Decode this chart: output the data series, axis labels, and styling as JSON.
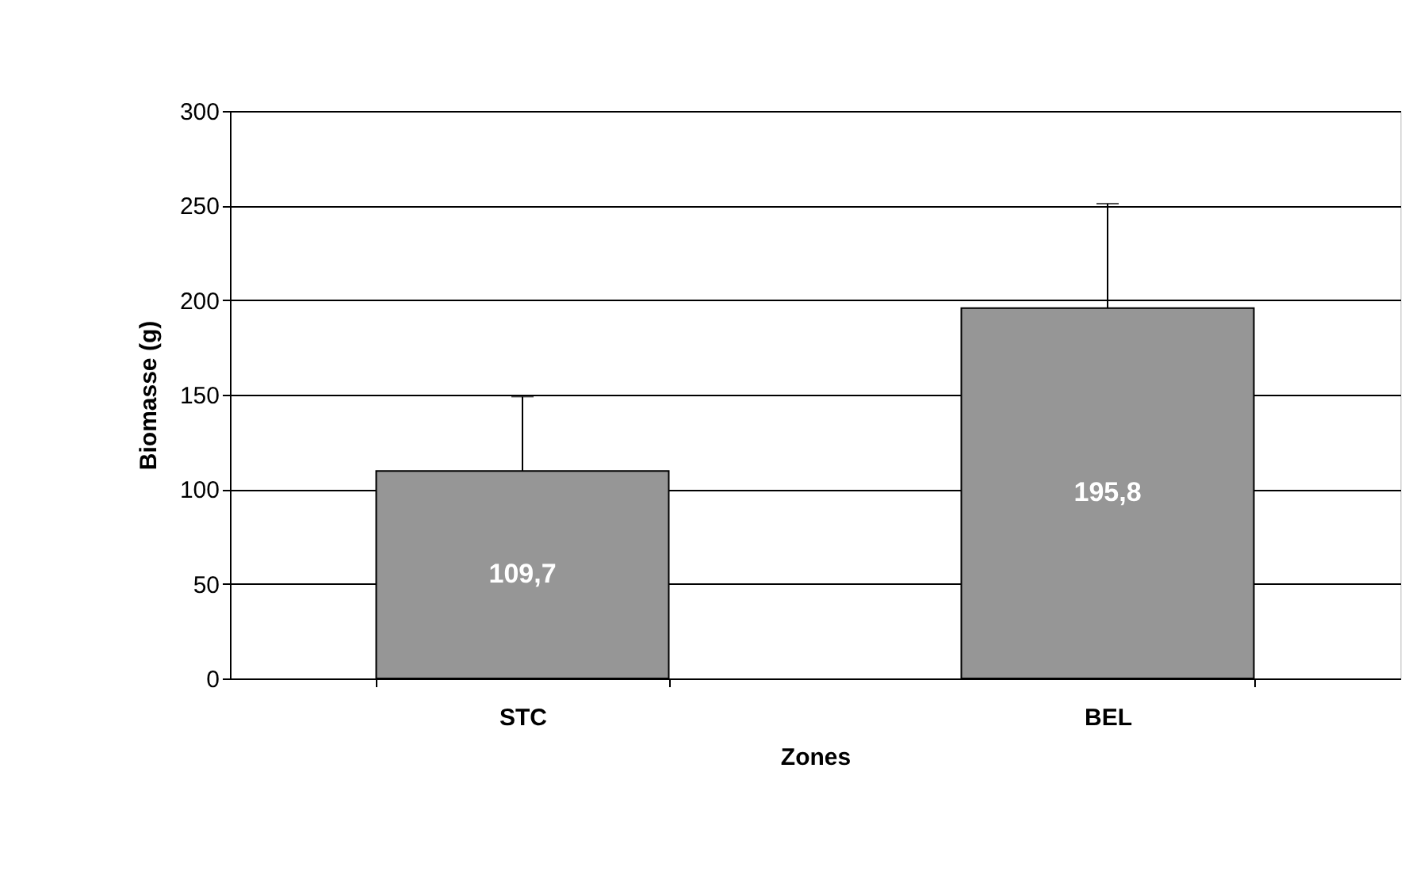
{
  "chart_data": {
    "type": "bar",
    "xlabel": "Zones",
    "ylabel": "Biomasse (g)",
    "categories": [
      "STC",
      "BEL"
    ],
    "values": [
      109.7,
      195.8
    ],
    "value_labels": [
      "109,7",
      "195,8"
    ],
    "errors": [
      [
        109.7,
        149
      ],
      [
        195.8,
        251
      ]
    ],
    "color": "#969696",
    "ylim": [
      0,
      300
    ],
    "yticks": [
      0,
      50,
      100,
      150,
      200,
      250,
      300
    ],
    "grid": "y"
  }
}
